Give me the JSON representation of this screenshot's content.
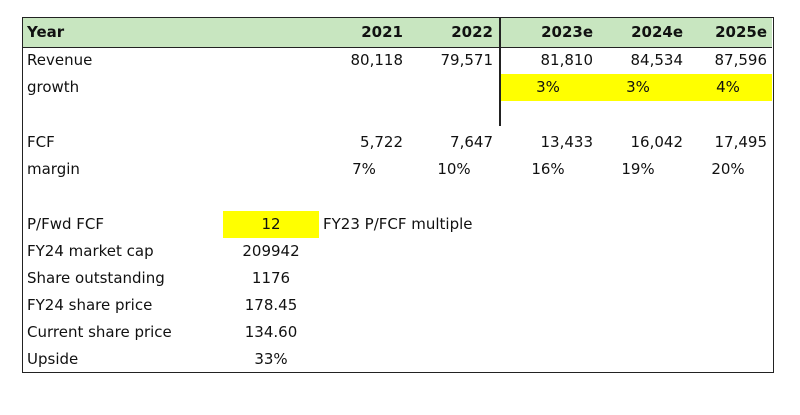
{
  "header": {
    "label": "Year",
    "years": [
      "2021",
      "2022",
      "2023e",
      "2024e",
      "2025e"
    ]
  },
  "revenue": {
    "label": "Revenue",
    "values": [
      "80,118",
      "79,571",
      "81,810",
      "84,534",
      "87,596"
    ]
  },
  "growth": {
    "label": "growth",
    "values": [
      "3%",
      "3%",
      "4%"
    ]
  },
  "fcf": {
    "label": "FCF",
    "values": [
      "5,722",
      "7,647",
      "13,433",
      "16,042",
      "17,495"
    ]
  },
  "margin": {
    "label": "margin",
    "values": [
      "7%",
      "10%",
      "16%",
      "19%",
      "20%"
    ]
  },
  "valuation": {
    "pfwd": {
      "label": "P/Fwd FCF",
      "value": "12",
      "note": "FY23 P/FCF multiple"
    },
    "market_cap": {
      "label": "FY24 market cap",
      "value": "209942"
    },
    "shares": {
      "label": "Share outstanding",
      "value": "1176"
    },
    "fy24_price": {
      "label": "FY24 share price",
      "value": "178.45"
    },
    "current_price": {
      "label": "Current share price",
      "value": "134.60"
    },
    "upside": {
      "label": "Upside",
      "value": "33%"
    }
  },
  "colors": {
    "header_fill": "#c8e6c0",
    "highlight": "#ffff00",
    "border": "#222222"
  }
}
